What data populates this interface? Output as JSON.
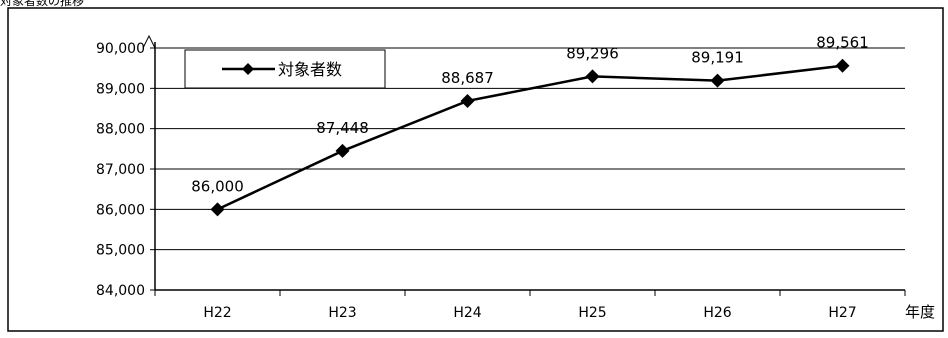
{
  "caption": "対象者数の推移",
  "chart_data": {
    "type": "line",
    "title": "",
    "xlabel": "年度",
    "ylabel": "",
    "categories": [
      "H22",
      "H23",
      "H24",
      "H25",
      "H26",
      "H27"
    ],
    "series": [
      {
        "name": "対象者数",
        "values": [
          86000,
          87448,
          88687,
          89296,
          89191,
          89561
        ],
        "labels": [
          "86,000",
          "87,448",
          "88,687",
          "89,296",
          "89,191",
          "89,561"
        ]
      }
    ],
    "ylim": [
      84000,
      90000
    ],
    "yticks": [
      84000,
      85000,
      86000,
      87000,
      88000,
      89000,
      90000
    ],
    "ytick_labels": [
      "84,000",
      "85,000",
      "86,000",
      "87,000",
      "88,000",
      "89,000",
      "90,000"
    ],
    "grid": true,
    "legend": "top-left",
    "colors": {
      "line": "#000000",
      "grid": "#000000",
      "frame": "#000000"
    }
  }
}
